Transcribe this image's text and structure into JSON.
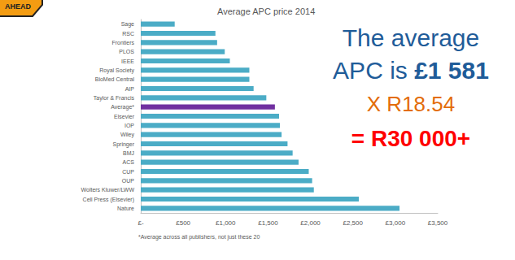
{
  "chart_data": {
    "type": "bar",
    "title": "Average APC price 2014",
    "orientation": "horizontal",
    "categories": [
      "Sage",
      "RSC",
      "Frontiers",
      "PLOS",
      "IEEE",
      "Royal Society",
      "BioMed Central",
      "AIP",
      "Taylor & Francis",
      "Average*",
      "Elsevier",
      "IOP",
      "Wiley",
      "Springer",
      "BMJ",
      "ACS",
      "CUP",
      "OUP",
      "Wolters Kluwer/LWW",
      "Cell Press (Elsevier)",
      "Nature"
    ],
    "values": [
      400,
      880,
      900,
      990,
      1050,
      1280,
      1280,
      1330,
      1480,
      1581,
      1630,
      1640,
      1660,
      1730,
      1790,
      1860,
      1980,
      2020,
      2040,
      2570,
      3050
    ],
    "colors": [
      "#4bacc6",
      "#4bacc6",
      "#4bacc6",
      "#4bacc6",
      "#4bacc6",
      "#4bacc6",
      "#4bacc6",
      "#4bacc6",
      "#4bacc6",
      "#7030a0",
      "#4bacc6",
      "#4bacc6",
      "#4bacc6",
      "#4bacc6",
      "#4bacc6",
      "#4bacc6",
      "#4bacc6",
      "#4bacc6",
      "#4bacc6",
      "#4bacc6",
      "#4bacc6"
    ],
    "xlim": [
      0,
      3500
    ],
    "xticks": [
      {
        "value": 0,
        "label": "£-"
      },
      {
        "value": 500,
        "label": "£500"
      },
      {
        "value": 1000,
        "label": "£1,000"
      },
      {
        "value": 1500,
        "label": "£1,500"
      },
      {
        "value": 2000,
        "label": "£2,000"
      },
      {
        "value": 2500,
        "label": "£2,500"
      },
      {
        "value": 3000,
        "label": "£3,000"
      },
      {
        "value": 3500,
        "label": "£3,500"
      }
    ],
    "grid": false,
    "data_labels": false,
    "footnote": "*Average across all publishers, not just these 20",
    "sign": "AHEAD",
    "annotations": [
      "The average",
      "APC is ",
      "£1 581",
      "X R18.54",
      "= R30 000+"
    ]
  }
}
